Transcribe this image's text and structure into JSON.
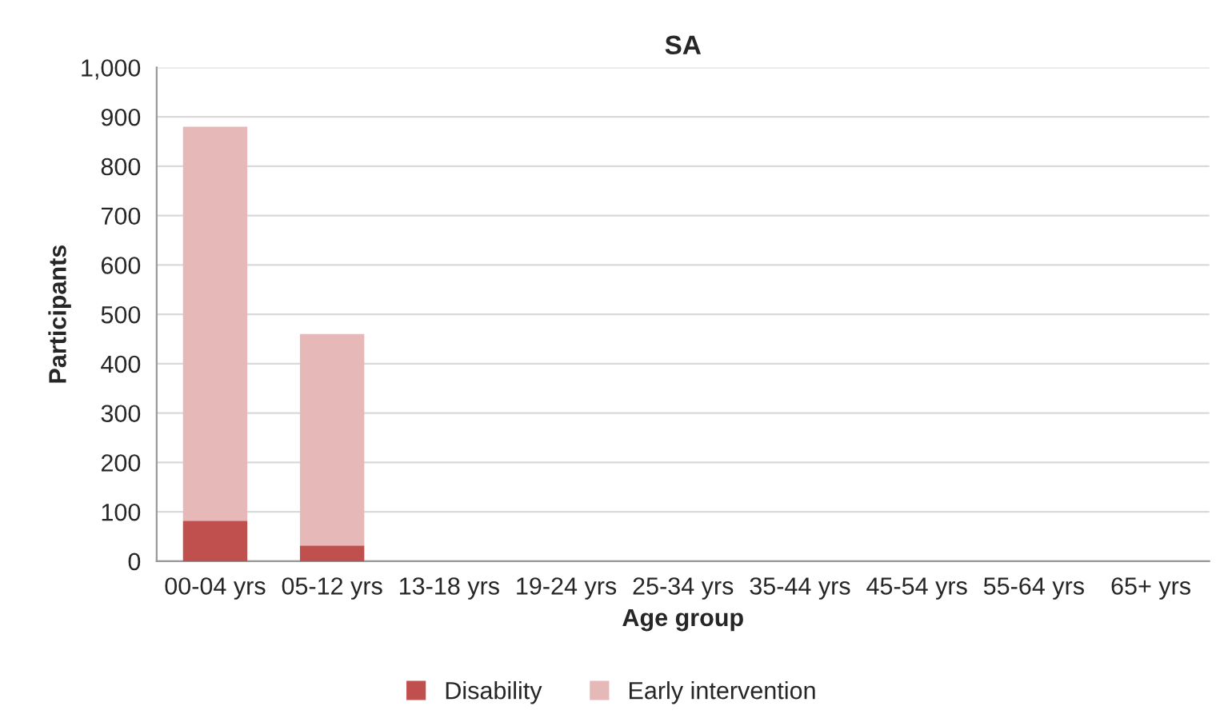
{
  "chart_data": {
    "type": "bar",
    "title": "SA",
    "xlabel": "Age group",
    "ylabel": "Participants",
    "categories": [
      "00-04 yrs",
      "05-12 yrs",
      "13-18 yrs",
      "19-24 yrs",
      "25-34 yrs",
      "35-44 yrs",
      "45-54 yrs",
      "55-64 yrs",
      "65+ yrs"
    ],
    "series": [
      {
        "name": "Disability",
        "color": "#c0504d",
        "values": [
          82,
          32,
          0,
          0,
          0,
          0,
          0,
          0,
          0
        ]
      },
      {
        "name": "Early intervention",
        "color": "#e6b9b8",
        "values": [
          798,
          428,
          0,
          0,
          0,
          0,
          0,
          0,
          0
        ]
      }
    ],
    "stacked": true,
    "ylim": [
      0,
      1000
    ],
    "yticks": [
      0,
      100,
      200,
      300,
      400,
      500,
      600,
      700,
      800,
      900,
      {
        "value": 1000,
        "label": "1,000"
      }
    ],
    "grid": "y",
    "legend": "bottom"
  }
}
